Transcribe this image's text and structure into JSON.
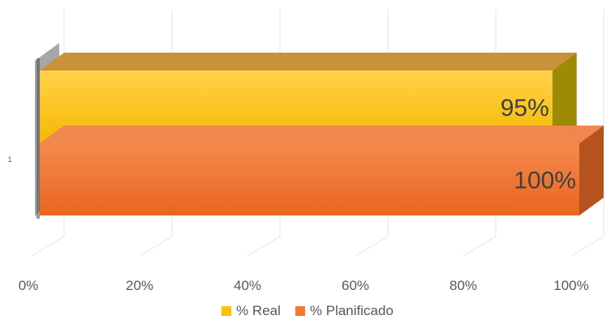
{
  "chart_data": {
    "type": "bar",
    "orientation": "horizontal",
    "categories": [
      "1"
    ],
    "series": [
      {
        "name": "% Real",
        "values": [
          95
        ],
        "color": "#FFC000",
        "label": "95%"
      },
      {
        "name": "% Planificado",
        "values": [
          100
        ],
        "color": "#F4782E",
        "label": "100%"
      }
    ],
    "xlim": [
      0,
      100
    ],
    "x_ticks": [
      "0%",
      "20%",
      "40%",
      "60%",
      "80%",
      "100%"
    ],
    "grid": true,
    "legend_position": "bottom",
    "title": "",
    "xlabel": "",
    "ylabel": ""
  }
}
